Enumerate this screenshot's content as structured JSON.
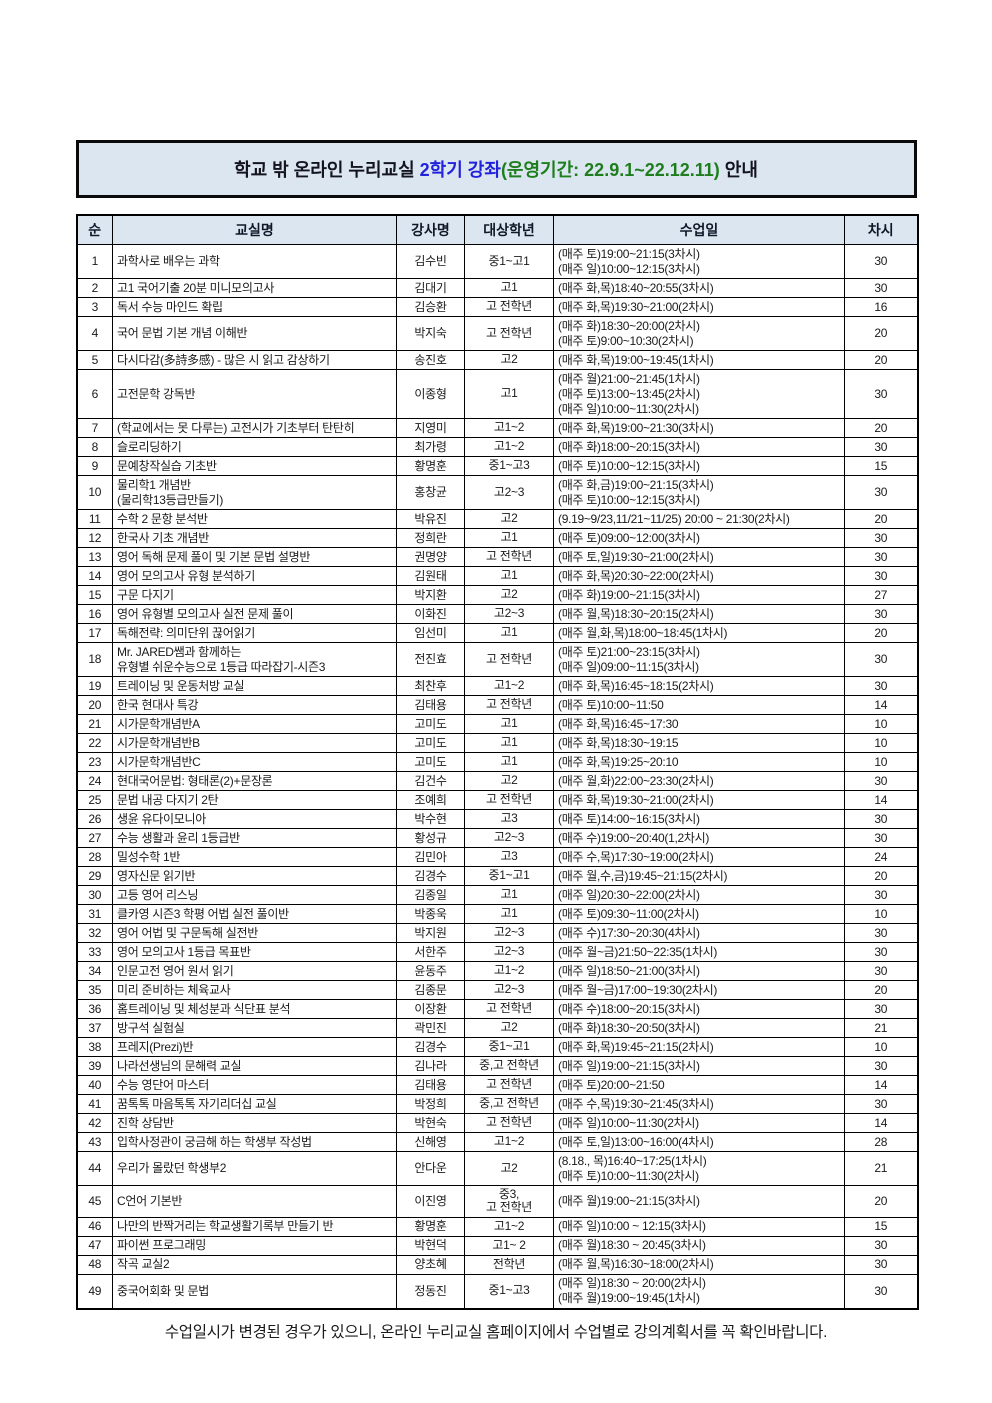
{
  "colors": {
    "title_black": "#14141e",
    "title_blue": "#2222dd",
    "title_green": "#1e7e1e",
    "header_bg": "#dce6f1",
    "border": "#000000"
  },
  "title": {
    "part_black1": "학교 밖 온라인 누리교실 ",
    "part_blue": "2학기 강좌",
    "part_green": "(운영기간: 22.9.1~22.12.11)",
    "part_black2": " 안내"
  },
  "table": {
    "headers": [
      "순",
      "교실명",
      "강사명",
      "대상학년",
      "수업일",
      "차시"
    ],
    "rows": [
      {
        "no": "1",
        "name": "과학사로 배우는 과학",
        "instructor": "김수빈",
        "grade": "중1~고1",
        "schedule": "(매주 토)19:00~21:15(3차시)\n(매주 일)10:00~12:15(3차시)",
        "sessions": "30"
      },
      {
        "no": "2",
        "name": "고1 국어기출 20분 미니모의고사",
        "instructor": "김대기",
        "grade": "고1",
        "schedule": "(매주 화,목)18:40~20:55(3차시)",
        "sessions": "30"
      },
      {
        "no": "3",
        "name": "독서 수능 마인드 확립",
        "instructor": "김승환",
        "grade": "고 전학년",
        "schedule": "(매주 화,목)19:30~21:00(2차시)",
        "sessions": "16"
      },
      {
        "no": "4",
        "name": "국어 문법 기본 개념 이해반",
        "instructor": "박지숙",
        "grade": "고 전학년",
        "schedule": "(매주 화)18:30~20:00(2차시)\n(매주 토)9:00~10:30(2차시)",
        "sessions": "20"
      },
      {
        "no": "5",
        "name": "다시다감(多詩多感) - 많은 시 읽고 감상하기",
        "instructor": "송진호",
        "grade": "고2",
        "schedule": "(매주 화,목)19:00~19:45(1차시)",
        "sessions": "20"
      },
      {
        "no": "6",
        "name": "고전문학 강독반",
        "instructor": "이종형",
        "grade": "고1",
        "schedule": "(매주 월)21:00~21:45(1차시)\n(매주 토)13:00~13:45(2차시)\n(매주 일)10:00~11:30(2차시)",
        "sessions": "30"
      },
      {
        "no": "7",
        "name": "(학교에서는 못 다루는) 고전시가 기초부터 탄탄히",
        "instructor": "지영미",
        "grade": "고1~2",
        "schedule": "(매주 화,목)19:00~21:30(3차시)",
        "sessions": "20"
      },
      {
        "no": "8",
        "name": "슬로리딩하기",
        "instructor": "최가령",
        "grade": "고1~2",
        "schedule": "(매주 화)18:00~20:15(3차시)",
        "sessions": "30"
      },
      {
        "no": "9",
        "name": "문예창작실습 기초반",
        "instructor": "황명훈",
        "grade": "중1~고3",
        "schedule": "(매주 토)10:00~12:15(3차시)",
        "sessions": "15"
      },
      {
        "no": "10",
        "name": "물리학1 개념반\n(물리학13등급만들기)",
        "instructor": "홍창균",
        "grade": "고2~3",
        "schedule": "(매주 화,금)19:00~21:15(3차시)\n(매주 토)10:00~12:15(3차시)",
        "sessions": "30"
      },
      {
        "no": "11",
        "name": "수학 2 문항 분석반",
        "instructor": "박유진",
        "grade": "고2",
        "schedule": "(9.19~9/23,11/21~11/25) 20:00 ~ 21:30(2차시)",
        "sessions": "20"
      },
      {
        "no": "12",
        "name": "한국사 기초 개념반",
        "instructor": "정희란",
        "grade": "고1",
        "schedule": "(매주 토)09:00~12:00(3차시)",
        "sessions": "30"
      },
      {
        "no": "13",
        "name": "영어 독해 문제 풀이 및 기본 문법 설명반",
        "instructor": "권명양",
        "grade": "고 전학년",
        "schedule": "(매주 토,일)19:30~21:00(2차시)",
        "sessions": "30"
      },
      {
        "no": "14",
        "name": "영어 모의고사 유형 분석하기",
        "instructor": "김원태",
        "grade": "고1",
        "schedule": "(매주 화,목)20:30~22:00(2차시)",
        "sessions": "30"
      },
      {
        "no": "15",
        "name": "구문 다지기",
        "instructor": "박지환",
        "grade": "고2",
        "schedule": "(매주 화)19:00~21:15(3차시)",
        "sessions": "27"
      },
      {
        "no": "16",
        "name": "영어 유형별 모의고사 실전 문제 풀이",
        "instructor": "이화진",
        "grade": "고2~3",
        "schedule": "(매주 월,목)18:30~20:15(2차시)",
        "sessions": "30"
      },
      {
        "no": "17",
        "name": "독해전략: 의미단위 끊어읽기",
        "instructor": "임선미",
        "grade": "고1",
        "schedule": "(매주 월,화,목)18:00~18:45(1차시)",
        "sessions": "20"
      },
      {
        "no": "18",
        "name": "Mr. JARED쌤과 함께하는\n유형별 쉬운수능으로 1등급 따라잡기-시즌3",
        "instructor": "전진효",
        "grade": "고 전학년",
        "schedule": "(매주 토)21:00~23:15(3차시)\n(매주 일)09:00~11:15(3차시)",
        "sessions": "30"
      },
      {
        "no": "19",
        "name": "트레이닝 및 운동처방 교실",
        "instructor": "최찬후",
        "grade": "고1~2",
        "schedule": "(매주 화,목)16:45~18:15(2차시)",
        "sessions": "30"
      },
      {
        "no": "20",
        "name": "한국 현대사 특강",
        "instructor": "김태용",
        "grade": "고 전학년",
        "schedule": "(매주 토)10:00~11:50",
        "sessions": "14"
      },
      {
        "no": "21",
        "name": "시가문학개념반A",
        "instructor": "고미도",
        "grade": "고1",
        "schedule": "(매주 화,목)16:45~17:30",
        "sessions": "10"
      },
      {
        "no": "22",
        "name": "시가문학개념반B",
        "instructor": "고미도",
        "grade": "고1",
        "schedule": "(매주 화,목)18:30~19:15",
        "sessions": "10"
      },
      {
        "no": "23",
        "name": "시가문학개념반C",
        "instructor": "고미도",
        "grade": "고1",
        "schedule": "(매주 화,목)19:25~20:10",
        "sessions": "10"
      },
      {
        "no": "24",
        "name": "현대국어문법: 형태론(2)+문장론",
        "instructor": "김건수",
        "grade": "고2",
        "schedule": "(매주 월,화)22:00~23:30(2차시)",
        "sessions": "30"
      },
      {
        "no": "25",
        "name": "문법 내공 다지기 2탄",
        "instructor": "조예희",
        "grade": "고 전학년",
        "schedule": "(매주 화,목)19:30~21:00(2차시)",
        "sessions": "14"
      },
      {
        "no": "26",
        "name": "생윤 유다이모니아",
        "instructor": "박수현",
        "grade": "고3",
        "schedule": "(매주 토)14:00~16:15(3차시)",
        "sessions": "30"
      },
      {
        "no": "27",
        "name": "수능 생활과 윤리 1등급반",
        "instructor": "황성규",
        "grade": "고2~3",
        "schedule": "(매주 수)19:00~20:40(1,2차시)",
        "sessions": "30"
      },
      {
        "no": "28",
        "name": "밀성수학 1반",
        "instructor": "김민아",
        "grade": "고3",
        "schedule": "(매주 수,목)17:30~19:00(2차시)",
        "sessions": "24"
      },
      {
        "no": "29",
        "name": "영자신문 읽기반",
        "instructor": "김경수",
        "grade": "중1~고1",
        "schedule": "(매주 월,수,금)19:45~21:15(2차시)",
        "sessions": "20"
      },
      {
        "no": "30",
        "name": "고등 영어 리스닝",
        "instructor": "김종일",
        "grade": "고1",
        "schedule": "(매주 일)20:30~22:00(2차시)",
        "sessions": "30"
      },
      {
        "no": "31",
        "name": "클카영 시즌3 학평 어법 실전 풀이반",
        "instructor": "박종욱",
        "grade": "고1",
        "schedule": "(매주 토)09:30~11:00(2차시)",
        "sessions": "10"
      },
      {
        "no": "32",
        "name": "영어 어법 및 구문독해 실전반",
        "instructor": "박지원",
        "grade": "고2~3",
        "schedule": "(매주 수)17:30~20:30(4차시)",
        "sessions": "30"
      },
      {
        "no": "33",
        "name": "영어 모의고사 1등급 목표반",
        "instructor": "서한주",
        "grade": "고2~3",
        "schedule": "(매주 월~금)21:50~22:35(1차시)",
        "sessions": "30"
      },
      {
        "no": "34",
        "name": "인문고전 영어 원서 읽기",
        "instructor": "윤동주",
        "grade": "고1~2",
        "schedule": "(매주 일)18:50~21:00(3차시)",
        "sessions": "30"
      },
      {
        "no": "35",
        "name": "미리 준비하는 체육교사",
        "instructor": "김종문",
        "grade": "고2~3",
        "schedule": "(매주 월~금)17:00~19:30(2차시)",
        "sessions": "20"
      },
      {
        "no": "36",
        "name": "홈트레이닝 및 체성분과 식단표 분석",
        "instructor": "이장환",
        "grade": "고 전학년",
        "schedule": "(매주 수)18:00~20:15(3차시)",
        "sessions": "30"
      },
      {
        "no": "37",
        "name": "방구석 실험실",
        "instructor": "곽민진",
        "grade": "고2",
        "schedule": "(매주 화)18:30~20:50(3차시)",
        "sessions": "21"
      },
      {
        "no": "38",
        "name": "프레지(Prezi)반",
        "instructor": "김경수",
        "grade": "중1~고1",
        "schedule": "(매주 화,목)19:45~21:15(2차시)",
        "sessions": "10"
      },
      {
        "no": "39",
        "name": "나라선생님의 문해력 교실",
        "instructor": "김나라",
        "grade": "중,고 전학년",
        "schedule": "(매주 일)19:00~21:15(3차시)",
        "sessions": "30"
      },
      {
        "no": "40",
        "name": "수능 영단어 마스터",
        "instructor": "김태용",
        "grade": "고 전학년",
        "schedule": "(매주 토)20:00~21:50",
        "sessions": "14"
      },
      {
        "no": "41",
        "name": "꿈톡톡 마음톡톡 자기리더십 교실",
        "instructor": "박정희",
        "grade": "중,고 전학년",
        "schedule": "(매주 수,목)19:30~21:45(3차시)",
        "sessions": "30"
      },
      {
        "no": "42",
        "name": "진학 상담반",
        "instructor": "박현숙",
        "grade": "고 전학년",
        "schedule": "(매주 일)10:00~11:30(2차시)",
        "sessions": "14"
      },
      {
        "no": "43",
        "name": "입학사정관이 궁금해 하는 학생부 작성법",
        "instructor": "신해영",
        "grade": "고1~2",
        "schedule": "(매주 토,일)13:00~16:00(4차시)",
        "sessions": "28"
      },
      {
        "no": "44",
        "name": "우리가 몰랐던 학생부2",
        "instructor": "안다운",
        "grade": "고2",
        "schedule": "(8.18., 목)16:40~17:25(1차시)\n(매주 토)10:00~11:30(2차시)",
        "sessions": "21"
      },
      {
        "no": "45",
        "name": "C언어 기본반",
        "instructor": "이진영",
        "grade": "중3,\n고 전학년",
        "schedule": "(매주 월)19:00~21:15(3차시)",
        "sessions": "20"
      },
      {
        "no": "46",
        "name": "나만의 반짝거리는 학교생활기록부 만들기 반",
        "instructor": "황명훈",
        "grade": "고1~2",
        "schedule": "(매주 일)10:00 ~ 12:15(3차시)",
        "sessions": "15"
      },
      {
        "no": "47",
        "name": "파이썬 프로그래밍",
        "instructor": "박현덕",
        "grade": "고1~ 2",
        "schedule": "(매주 월)18:30 ~ 20:45(3차시)",
        "sessions": "30"
      },
      {
        "no": "48",
        "name": "작곡 교실2",
        "instructor": "양초혜",
        "grade": "전학년",
        "schedule": "(매주 월,목)16:30~18:00(2차시)",
        "sessions": "30"
      },
      {
        "no": "49",
        "name": "중국어회화 및 문법",
        "instructor": "정동진",
        "grade": "중1~고3",
        "schedule": "(매주 일)18:30 ~ 20:00(2차시)\n(매주 월)19:00~19:45(1차시)",
        "sessions": "30"
      }
    ]
  },
  "footer": "수업일시가 변경된 경우가 있으니, 온라인 누리교실 홈페이지에서 수업별로 강의계획서를 꼭 확인바랍니다."
}
